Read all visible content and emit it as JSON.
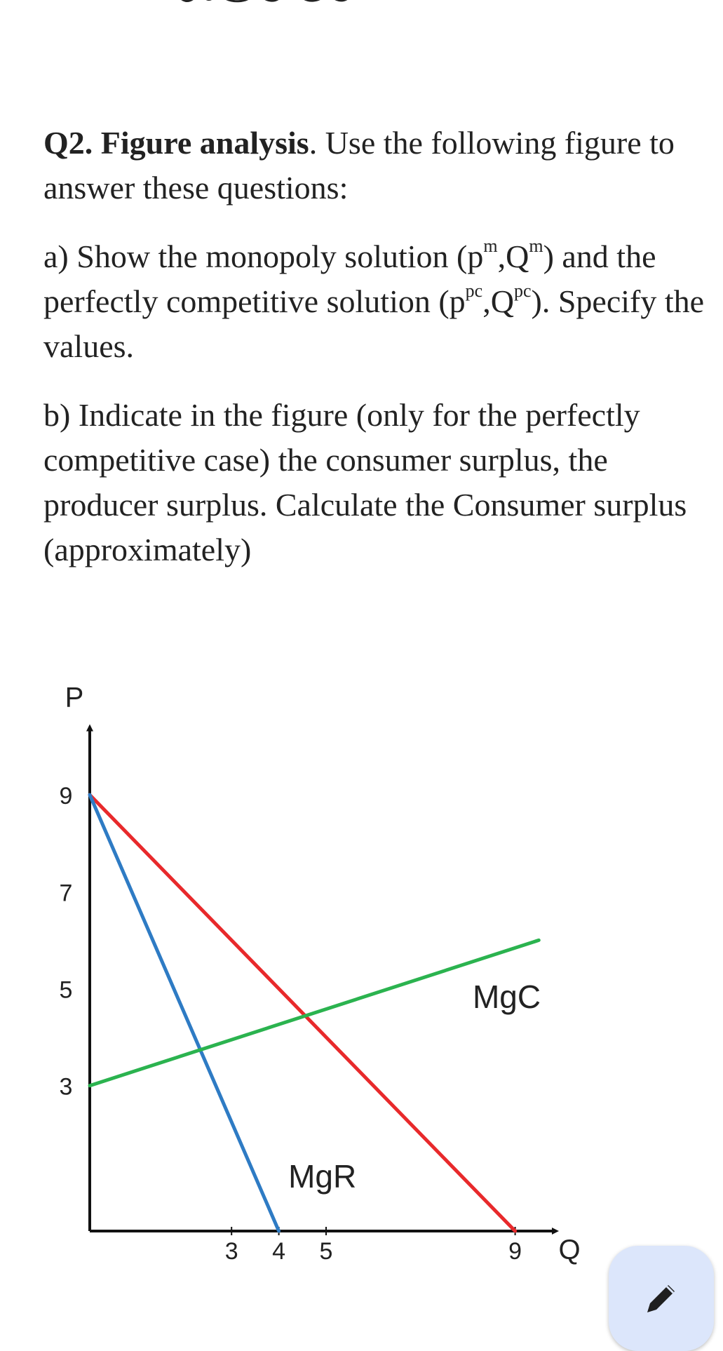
{
  "question": {
    "title_bold": "Q2. Figure analysis",
    "title_rest": ". Use the following figure to answer these questions:",
    "part_a": {
      "t1": "a) Show the monopoly solution (p",
      "s1": "m",
      "t2": ",Q",
      "s2": "m",
      "t3": ") and the perfectly competitive solution (p",
      "s3": "pc",
      "t4": ",Q",
      "s4": "pc",
      "t5": "). Specify the values."
    },
    "part_b": "b) Indicate in the figure (only for the perfectly competitive case) the consumer surplus, the producer surplus. Calculate the Consumer surplus (approximately)"
  },
  "chart_data": {
    "type": "line",
    "title": "",
    "xlabel": "Q",
    "ylabel": "P",
    "xlim": [
      0,
      10
    ],
    "ylim": [
      0,
      10.5
    ],
    "x_ticks": [
      "3",
      "4",
      "5",
      "9"
    ],
    "x_tick_values": [
      3,
      4,
      5,
      9
    ],
    "y_ticks": [
      "3",
      "5",
      "7",
      "9"
    ],
    "y_tick_values": [
      3,
      5,
      7,
      9
    ],
    "series": [
      {
        "name": "",
        "color": "#e8292b",
        "x": [
          0,
          9
        ],
        "y": [
          9,
          0
        ]
      },
      {
        "name": "MgR",
        "color": "#2e7bc4",
        "x": [
          0,
          4
        ],
        "y": [
          9,
          0
        ]
      },
      {
        "name": "MgC",
        "color": "#2bb34f",
        "x": [
          0,
          9.5
        ],
        "y": [
          3,
          6
        ]
      }
    ],
    "annotations": [
      {
        "text": "MgR",
        "x": 4.2,
        "y": 0.9
      },
      {
        "text": "MgC",
        "x": 8.1,
        "y": 4.6
      }
    ],
    "grid": false,
    "legend": "none"
  }
}
